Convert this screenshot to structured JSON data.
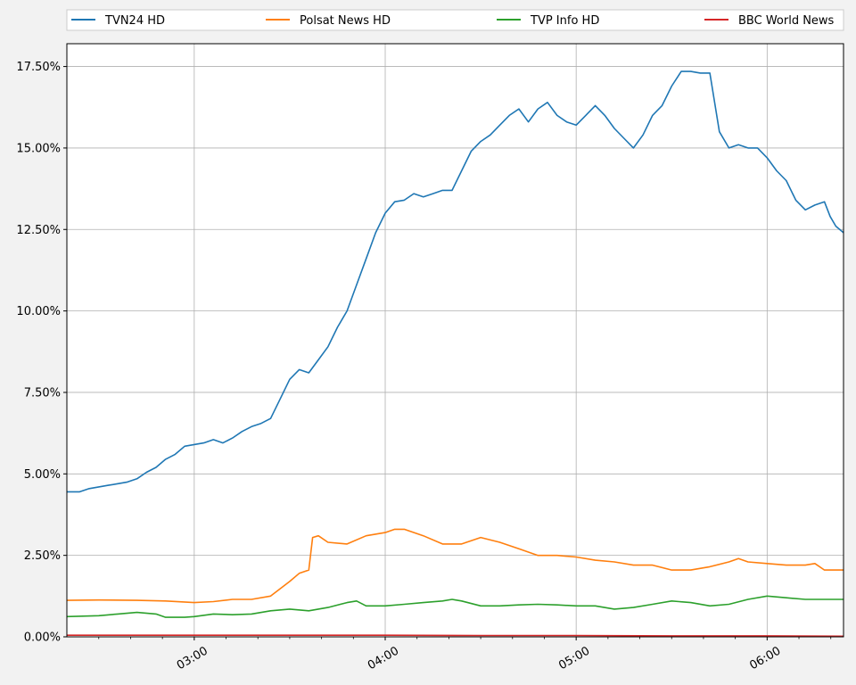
{
  "chart_data": {
    "type": "line",
    "title": "",
    "xlabel": "",
    "ylabel": "",
    "x_ticks": [
      {
        "x": 3.0,
        "label": "03:00"
      },
      {
        "x": 4.0,
        "label": "04:00"
      },
      {
        "x": 5.0,
        "label": "05:00"
      },
      {
        "x": 6.0,
        "label": "06:00"
      }
    ],
    "xlim": [
      2.333,
      6.4
    ],
    "ylim": [
      0,
      18.2
    ],
    "y_ticks": [
      {
        "y": 0,
        "label": "0.00%"
      },
      {
        "y": 2.5,
        "label": "2.50%"
      },
      {
        "y": 5,
        "label": "5.00%"
      },
      {
        "y": 7.5,
        "label": "7.50%"
      },
      {
        "y": 10,
        "label": "10.00%"
      },
      {
        "y": 12.5,
        "label": "12.50%"
      },
      {
        "y": 15,
        "label": "15.00%"
      },
      {
        "y": 17.5,
        "label": "17.50%"
      }
    ],
    "grid": true,
    "legend_position": "top",
    "series": [
      {
        "name": "TVN24 HD",
        "color": "#1f77b4",
        "points": [
          [
            2.333,
            4.45
          ],
          [
            2.4,
            4.45
          ],
          [
            2.45,
            4.55
          ],
          [
            2.5,
            4.6
          ],
          [
            2.55,
            4.65
          ],
          [
            2.6,
            4.7
          ],
          [
            2.65,
            4.75
          ],
          [
            2.7,
            4.85
          ],
          [
            2.75,
            5.05
          ],
          [
            2.8,
            5.2
          ],
          [
            2.85,
            5.45
          ],
          [
            2.9,
            5.6
          ],
          [
            2.95,
            5.85
          ],
          [
            3.0,
            5.9
          ],
          [
            3.05,
            5.95
          ],
          [
            3.1,
            6.05
          ],
          [
            3.15,
            5.95
          ],
          [
            3.2,
            6.1
          ],
          [
            3.25,
            6.3
          ],
          [
            3.3,
            6.45
          ],
          [
            3.35,
            6.55
          ],
          [
            3.4,
            6.7
          ],
          [
            3.45,
            7.3
          ],
          [
            3.5,
            7.9
          ],
          [
            3.55,
            8.2
          ],
          [
            3.6,
            8.1
          ],
          [
            3.65,
            8.5
          ],
          [
            3.7,
            8.9
          ],
          [
            3.75,
            9.5
          ],
          [
            3.8,
            10.0
          ],
          [
            3.85,
            10.8
          ],
          [
            3.9,
            11.6
          ],
          [
            3.95,
            12.4
          ],
          [
            4.0,
            13.0
          ],
          [
            4.05,
            13.35
          ],
          [
            4.1,
            13.4
          ],
          [
            4.15,
            13.6
          ],
          [
            4.2,
            13.5
          ],
          [
            4.25,
            13.6
          ],
          [
            4.3,
            13.7
          ],
          [
            4.35,
            13.7
          ],
          [
            4.4,
            14.3
          ],
          [
            4.45,
            14.9
          ],
          [
            4.5,
            15.2
          ],
          [
            4.55,
            15.4
          ],
          [
            4.6,
            15.7
          ],
          [
            4.65,
            16.0
          ],
          [
            4.7,
            16.2
          ],
          [
            4.75,
            15.8
          ],
          [
            4.8,
            16.2
          ],
          [
            4.85,
            16.4
          ],
          [
            4.9,
            16.0
          ],
          [
            4.95,
            15.8
          ],
          [
            5.0,
            15.7
          ],
          [
            5.05,
            16.0
          ],
          [
            5.1,
            16.3
          ],
          [
            5.15,
            16.0
          ],
          [
            5.2,
            15.6
          ],
          [
            5.25,
            15.3
          ],
          [
            5.3,
            15.0
          ],
          [
            5.35,
            15.4
          ],
          [
            5.4,
            16.0
          ],
          [
            5.45,
            16.3
          ],
          [
            5.5,
            16.9
          ],
          [
            5.55,
            17.35
          ],
          [
            5.6,
            17.35
          ],
          [
            5.65,
            17.3
          ],
          [
            5.7,
            17.3
          ],
          [
            5.75,
            15.5
          ],
          [
            5.8,
            15.0
          ],
          [
            5.85,
            15.1
          ],
          [
            5.9,
            15.0
          ],
          [
            5.95,
            15.0
          ],
          [
            6.0,
            14.7
          ],
          [
            6.05,
            14.3
          ],
          [
            6.1,
            14.0
          ],
          [
            6.15,
            13.4
          ],
          [
            6.2,
            13.1
          ],
          [
            6.25,
            13.25
          ],
          [
            6.3,
            13.35
          ],
          [
            6.33,
            12.9
          ],
          [
            6.36,
            12.6
          ],
          [
            6.4,
            12.4
          ]
        ]
      },
      {
        "name": "Polsat News HD",
        "color": "#ff7f0e",
        "points": [
          [
            2.333,
            1.12
          ],
          [
            2.5,
            1.13
          ],
          [
            2.7,
            1.12
          ],
          [
            2.85,
            1.1
          ],
          [
            3.0,
            1.05
          ],
          [
            3.1,
            1.08
          ],
          [
            3.2,
            1.15
          ],
          [
            3.3,
            1.15
          ],
          [
            3.4,
            1.25
          ],
          [
            3.5,
            1.7
          ],
          [
            3.55,
            1.95
          ],
          [
            3.6,
            2.05
          ],
          [
            3.62,
            3.05
          ],
          [
            3.65,
            3.1
          ],
          [
            3.7,
            2.9
          ],
          [
            3.8,
            2.85
          ],
          [
            3.9,
            3.1
          ],
          [
            4.0,
            3.2
          ],
          [
            4.05,
            3.3
          ],
          [
            4.1,
            3.3
          ],
          [
            4.2,
            3.1
          ],
          [
            4.3,
            2.85
          ],
          [
            4.4,
            2.85
          ],
          [
            4.5,
            3.05
          ],
          [
            4.6,
            2.9
          ],
          [
            4.7,
            2.7
          ],
          [
            4.8,
            2.5
          ],
          [
            4.9,
            2.5
          ],
          [
            5.0,
            2.45
          ],
          [
            5.1,
            2.35
          ],
          [
            5.2,
            2.3
          ],
          [
            5.3,
            2.2
          ],
          [
            5.4,
            2.2
          ],
          [
            5.5,
            2.05
          ],
          [
            5.6,
            2.05
          ],
          [
            5.7,
            2.15
          ],
          [
            5.8,
            2.3
          ],
          [
            5.85,
            2.4
          ],
          [
            5.9,
            2.3
          ],
          [
            6.0,
            2.25
          ],
          [
            6.1,
            2.2
          ],
          [
            6.2,
            2.2
          ],
          [
            6.25,
            2.25
          ],
          [
            6.3,
            2.05
          ],
          [
            6.4,
            2.05
          ]
        ]
      },
      {
        "name": "TVP Info HD",
        "color": "#2ca02c",
        "points": [
          [
            2.333,
            0.62
          ],
          [
            2.5,
            0.65
          ],
          [
            2.6,
            0.7
          ],
          [
            2.7,
            0.75
          ],
          [
            2.8,
            0.7
          ],
          [
            2.85,
            0.6
          ],
          [
            2.95,
            0.6
          ],
          [
            3.0,
            0.62
          ],
          [
            3.1,
            0.7
          ],
          [
            3.2,
            0.68
          ],
          [
            3.3,
            0.7
          ],
          [
            3.4,
            0.8
          ],
          [
            3.5,
            0.85
          ],
          [
            3.6,
            0.8
          ],
          [
            3.7,
            0.9
          ],
          [
            3.8,
            1.05
          ],
          [
            3.85,
            1.1
          ],
          [
            3.9,
            0.95
          ],
          [
            4.0,
            0.95
          ],
          [
            4.1,
            1.0
          ],
          [
            4.2,
            1.05
          ],
          [
            4.3,
            1.1
          ],
          [
            4.35,
            1.15
          ],
          [
            4.4,
            1.1
          ],
          [
            4.5,
            0.95
          ],
          [
            4.6,
            0.95
          ],
          [
            4.7,
            0.98
          ],
          [
            4.8,
            1.0
          ],
          [
            4.9,
            0.98
          ],
          [
            5.0,
            0.95
          ],
          [
            5.1,
            0.95
          ],
          [
            5.2,
            0.85
          ],
          [
            5.3,
            0.9
          ],
          [
            5.4,
            1.0
          ],
          [
            5.5,
            1.1
          ],
          [
            5.6,
            1.05
          ],
          [
            5.7,
            0.95
          ],
          [
            5.8,
            1.0
          ],
          [
            5.9,
            1.15
          ],
          [
            6.0,
            1.25
          ],
          [
            6.1,
            1.2
          ],
          [
            6.2,
            1.15
          ],
          [
            6.3,
            1.15
          ],
          [
            6.4,
            1.15
          ]
        ]
      },
      {
        "name": "BBC World News",
        "color": "#d62728",
        "points": [
          [
            2.333,
            0.05
          ],
          [
            2.5,
            0.05
          ],
          [
            3.0,
            0.05
          ],
          [
            3.5,
            0.05
          ],
          [
            4.0,
            0.05
          ],
          [
            4.5,
            0.04
          ],
          [
            5.0,
            0.04
          ],
          [
            5.5,
            0.03
          ],
          [
            6.0,
            0.03
          ],
          [
            6.4,
            0.02
          ]
        ]
      }
    ]
  }
}
